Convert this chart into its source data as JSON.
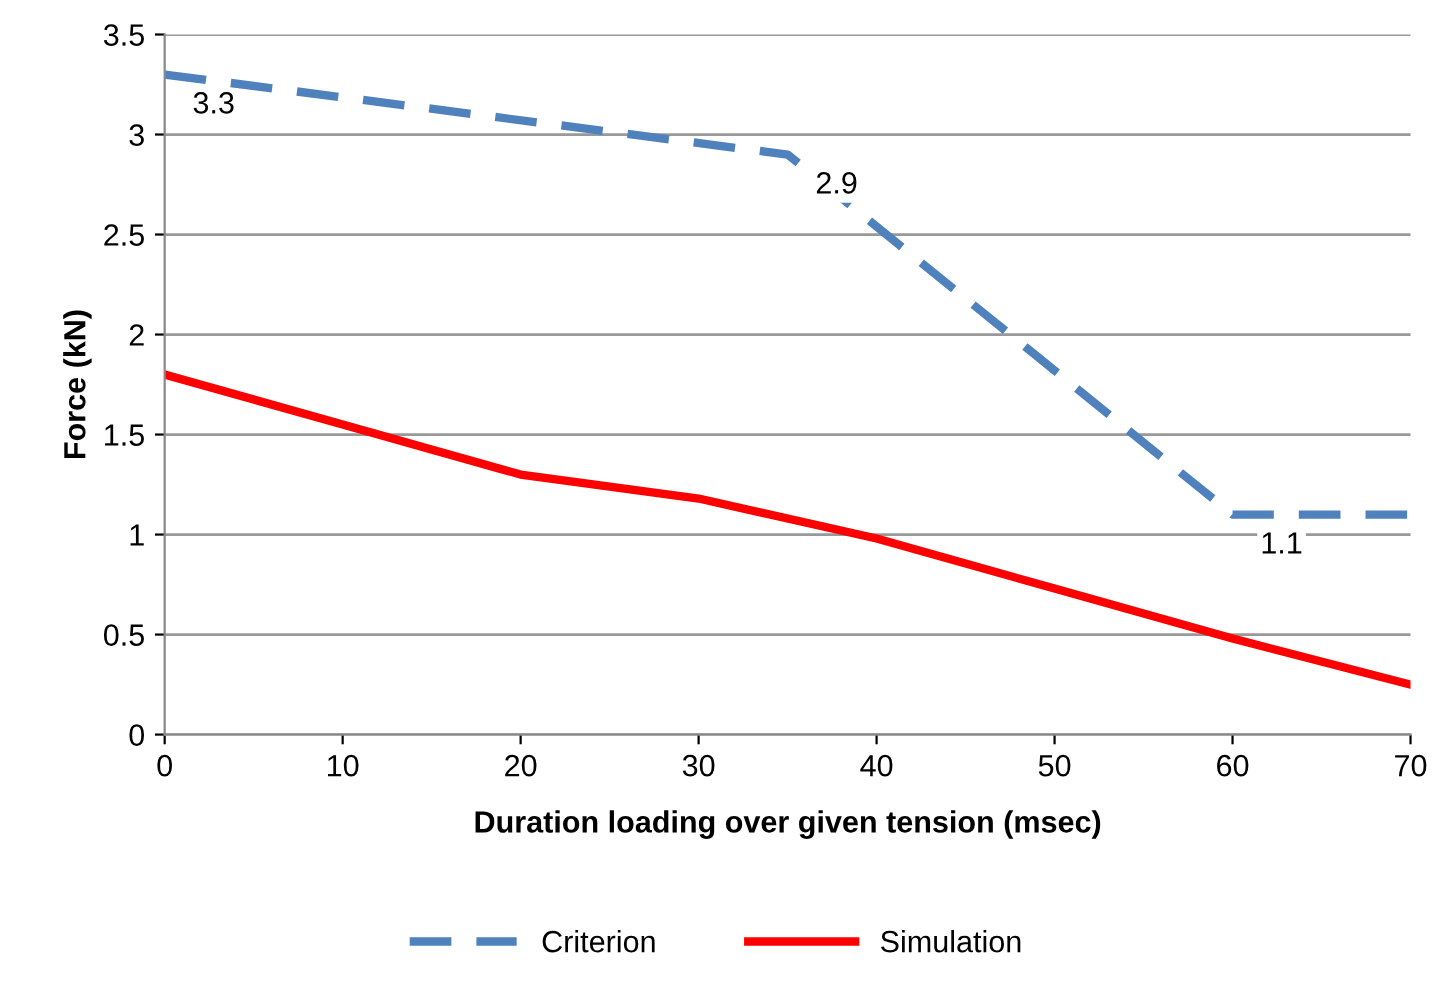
{
  "chart_data": {
    "type": "line",
    "xlabel": "Duration loading over given tension (msec)",
    "ylabel": "Force (kN)",
    "xlim": [
      0,
      70
    ],
    "xticks": [
      0,
      10,
      20,
      30,
      40,
      50,
      60,
      70
    ],
    "ylim": [
      0,
      3.5
    ],
    "yticks": [
      0,
      0.5,
      1,
      1.5,
      2,
      2.5,
      3,
      3.5
    ],
    "grid": "y",
    "legend": "bottom",
    "series": [
      {
        "name": "Criterion",
        "color": "#4f81bd",
        "line_style": "dashed",
        "x": [
          0,
          35,
          60,
          70
        ],
        "values": [
          3.3,
          2.9,
          1.1,
          1.1
        ]
      },
      {
        "name": "Simulation",
        "color": "#ff0000",
        "line_style": "solid",
        "x": [
          0,
          10,
          20,
          30,
          40,
          50,
          60,
          70
        ],
        "values": [
          1.8,
          1.55,
          1.3,
          1.18,
          0.98,
          0.73,
          0.48,
          0.25
        ]
      }
    ],
    "annotations": [
      {
        "text": "3.3",
        "x": 0,
        "y": 3.3
      },
      {
        "text": "2.9",
        "x": 35,
        "y": 2.9
      },
      {
        "text": "1.1",
        "x": 60,
        "y": 1.1
      }
    ]
  }
}
